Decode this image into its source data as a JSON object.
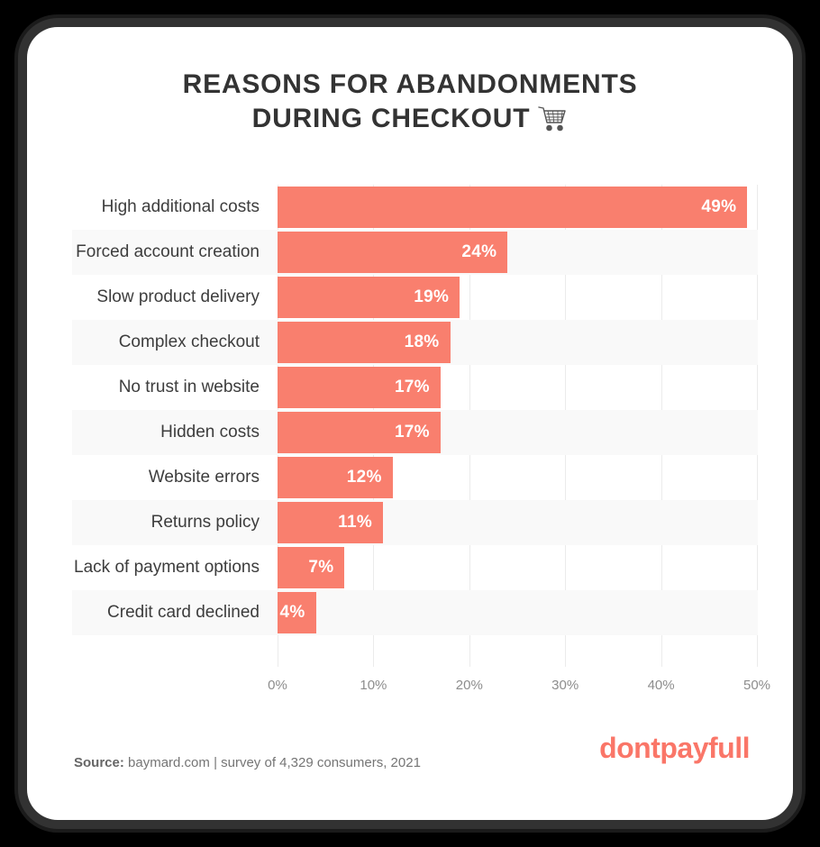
{
  "title": {
    "line1": "REASONS FOR ABANDONMENTS",
    "line2": "DURING CHECKOUT",
    "icon": "shopping-cart"
  },
  "chart_data": {
    "type": "bar",
    "orientation": "horizontal",
    "title": "REASONS FOR ABANDONMENTS DURING CHECKOUT",
    "categories": [
      "High additional costs",
      "Forced account creation",
      "Slow product delivery",
      "Complex checkout",
      "No trust in website",
      "Hidden costs",
      "Website errors",
      "Returns policy",
      "Lack of payment options",
      "Credit card declined"
    ],
    "values": [
      49,
      24,
      19,
      18,
      17,
      17,
      12,
      11,
      7,
      4
    ],
    "value_labels": [
      "49%",
      "24%",
      "19%",
      "18%",
      "17%",
      "17%",
      "12%",
      "11%",
      "7%",
      "4%"
    ],
    "xlabel": "",
    "ylabel": "",
    "xlim": [
      0,
      50
    ],
    "x_ticks": [
      "0%",
      "10%",
      "20%",
      "30%",
      "40%",
      "50%"
    ],
    "x_tick_values": [
      0,
      10,
      20,
      30,
      40,
      50
    ],
    "grid": "vertical",
    "legend": "none",
    "bar_color": "#f97f6e",
    "stripe_color": "#f9f9f9",
    "gridline_color": "#ebebeb",
    "value_label_color": "#ffffff"
  },
  "footer": {
    "source_label": "Source:",
    "source_text": "baymard.com | survey of 4,329 consumers, 2021",
    "logo_text": "dontpayfull",
    "logo_color": "#fa7668"
  }
}
